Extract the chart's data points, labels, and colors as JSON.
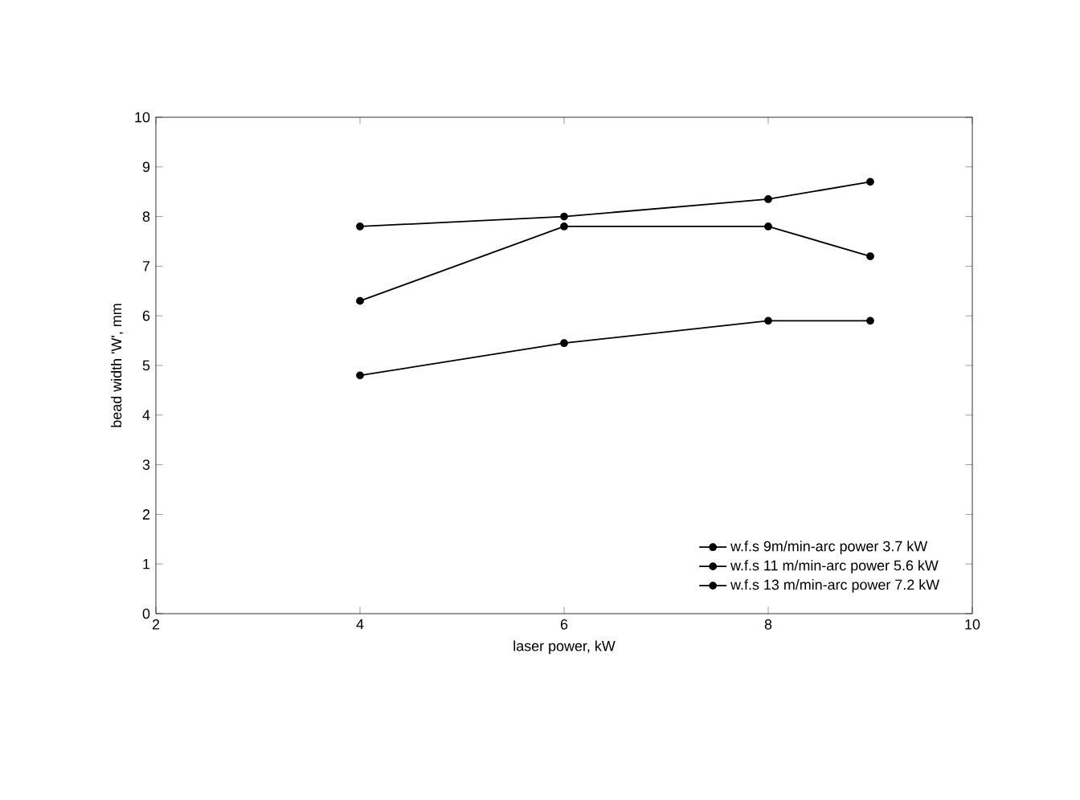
{
  "chart_data": {
    "type": "line",
    "xlabel": "laser power, kW",
    "ylabel": "bead width 'W', mm",
    "x": [
      4,
      6,
      8,
      9
    ],
    "series": [
      {
        "name": "w.f.s  9m/min-arc power  3.7 kW",
        "color": "#000000",
        "values": [
          4.8,
          5.45,
          5.9,
          5.9
        ]
      },
      {
        "name": "w.f.s  11 m/min-arc power  5.6 kW",
        "color": "#000000",
        "values": [
          6.3,
          7.8,
          7.8,
          7.2
        ]
      },
      {
        "name": "w.f.s  13 m/min-arc power  7.2 kW",
        "color": "#000000",
        "values": [
          7.8,
          8.0,
          8.35,
          8.7
        ]
      }
    ],
    "xlim": [
      2,
      10
    ],
    "xticks": [
      2,
      4,
      6,
      8,
      10
    ],
    "ylim": [
      0,
      10
    ],
    "yticks": [
      0,
      1,
      2,
      3,
      4,
      5,
      6,
      7,
      8,
      9,
      10
    ],
    "legend": "bottom right",
    "grid": false,
    "marker": "circle",
    "line_style": "solid"
  }
}
